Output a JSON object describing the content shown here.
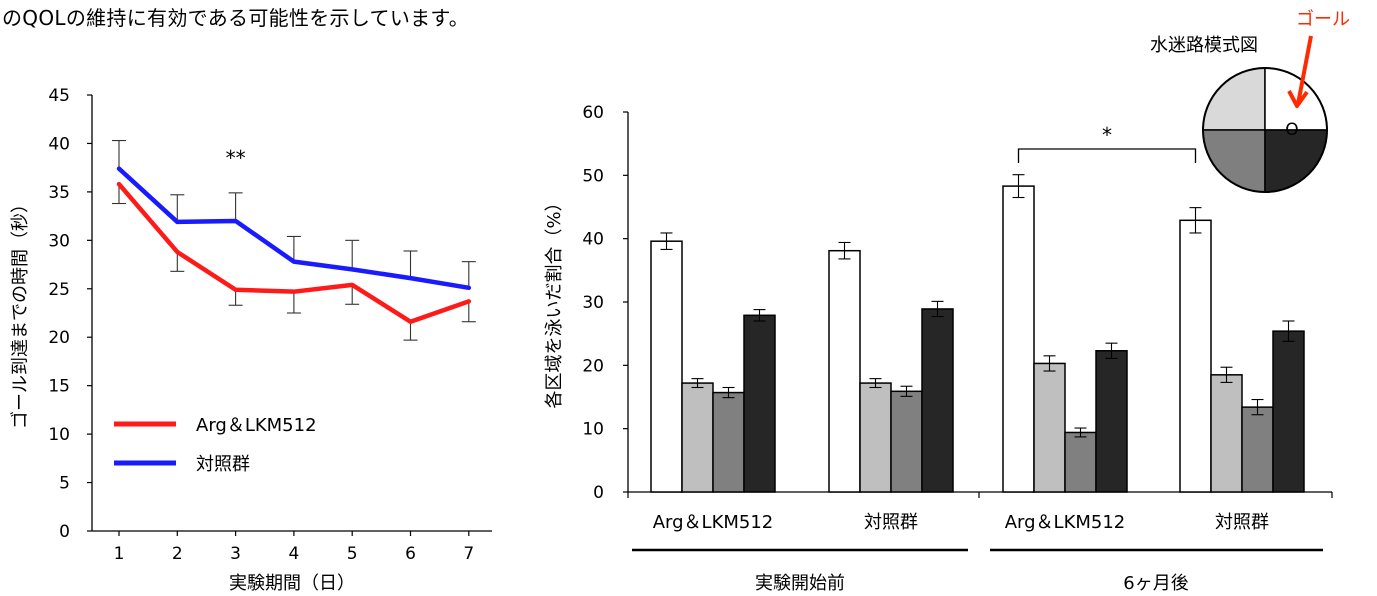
{
  "intro_text": "のQOLの維持に有効である可能性を示しています。",
  "colors": {
    "arg": "#ff1a1a",
    "control": "#1a1aff",
    "goal_label": "#ff2a00",
    "q_top_left": "#d9d9d9",
    "q_top_right": "#ffffff",
    "q_bottom_left": "#7f7f7f",
    "q_bottom_right": "#262626",
    "bar_fills": [
      "#ffffff",
      "#bfbfbf",
      "#808080",
      "#262626"
    ]
  },
  "maze": {
    "title": "水迷路模式図",
    "goal_label": "ゴール",
    "goal_marker": "O"
  },
  "chart_data": [
    {
      "type": "line",
      "xlabel": "実験期間（日）",
      "ylabel": "ゴール到達までの時間（秒）",
      "x": [
        1,
        2,
        3,
        4,
        5,
        6,
        7
      ],
      "ylim": [
        0,
        45
      ],
      "yticks": [
        0,
        5,
        10,
        15,
        20,
        25,
        30,
        35,
        40,
        45
      ],
      "significance": {
        "label": "**",
        "x": 3
      },
      "legend_placement": "left-middle",
      "series": [
        {
          "name": "Arg＆LKM512",
          "color": "#ff1a1a",
          "values": [
            35.8,
            28.8,
            24.9,
            24.7,
            25.4,
            21.6,
            23.7
          ],
          "err_low": [
            2.0,
            2.0,
            1.6,
            2.2,
            2.0,
            1.9,
            2.1
          ]
        },
        {
          "name": "対照群",
          "color": "#1a1aff",
          "values": [
            37.4,
            31.9,
            32.0,
            27.8,
            27.0,
            26.1,
            25.1
          ],
          "err_high": [
            2.9,
            2.8,
            2.9,
            2.6,
            3.0,
            2.8,
            2.7
          ]
        }
      ]
    },
    {
      "type": "bar",
      "ylabel": "各区域を泳いだ割合（%）",
      "ylim": [
        0,
        60
      ],
      "yticks": [
        0,
        10,
        20,
        30,
        40,
        50,
        60
      ],
      "groups": [
        {
          "period": "実験開始前",
          "label": "Arg＆LKM512",
          "values": [
            39.6,
            17.2,
            15.7,
            27.9
          ],
          "err": [
            1.3,
            0.7,
            0.8,
            0.9
          ]
        },
        {
          "period": "実験開始前",
          "label": "対照群",
          "values": [
            38.1,
            17.2,
            15.9,
            28.9
          ],
          "err": [
            1.3,
            0.7,
            0.8,
            1.2
          ]
        },
        {
          "period": "6ヶ月後",
          "label": "Arg＆LKM512",
          "values": [
            48.3,
            20.3,
            9.4,
            22.3
          ],
          "err": [
            1.8,
            1.2,
            0.7,
            1.2
          ]
        },
        {
          "period": "6ヶ月後",
          "label": "対照群",
          "values": [
            42.9,
            18.5,
            13.4,
            25.4
          ],
          "err": [
            2.0,
            1.2,
            1.2,
            1.6
          ]
        }
      ],
      "periods": [
        "実験開始前",
        "6ヶ月後"
      ],
      "significance": {
        "label": "*",
        "between_groups": [
          2,
          3
        ]
      }
    }
  ]
}
